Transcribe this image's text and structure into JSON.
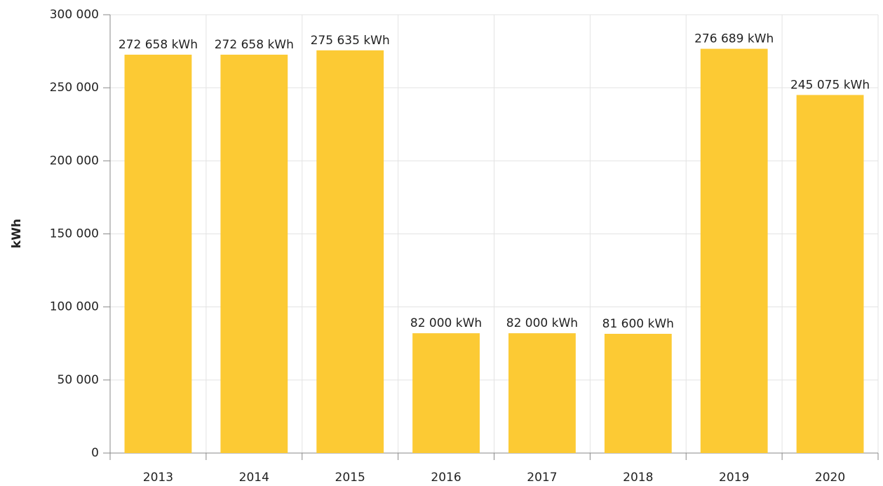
{
  "chart_data": {
    "type": "bar",
    "y_label": "kWh",
    "categories": [
      "2013",
      "2014",
      "2015",
      "2016",
      "2017",
      "2018",
      "2019",
      "2020"
    ],
    "values": [
      272658,
      272658,
      275635,
      82000,
      82000,
      81600,
      276689,
      245075
    ],
    "value_labels": [
      "272 658 kWh",
      "272 658 kWh",
      "275 635 kWh",
      "82 000 kWh",
      "82 000 kWh",
      "81 600 kWh",
      "276 689 kWh",
      "245 075 kWh"
    ],
    "color": "#fcca34",
    "ylim": [
      0,
      300000
    ],
    "yticks": [
      0,
      {
        "value": 50000,
        "label": "50 000"
      },
      {
        "value": 100000,
        "label": "100 000"
      },
      {
        "value": 150000,
        "label": "150 000"
      },
      {
        "value": 200000,
        "label": "200 000"
      },
      {
        "value": 250000,
        "label": "250 000"
      },
      {
        "value": 300000,
        "label": "300 000"
      }
    ],
    "grid": true
  }
}
